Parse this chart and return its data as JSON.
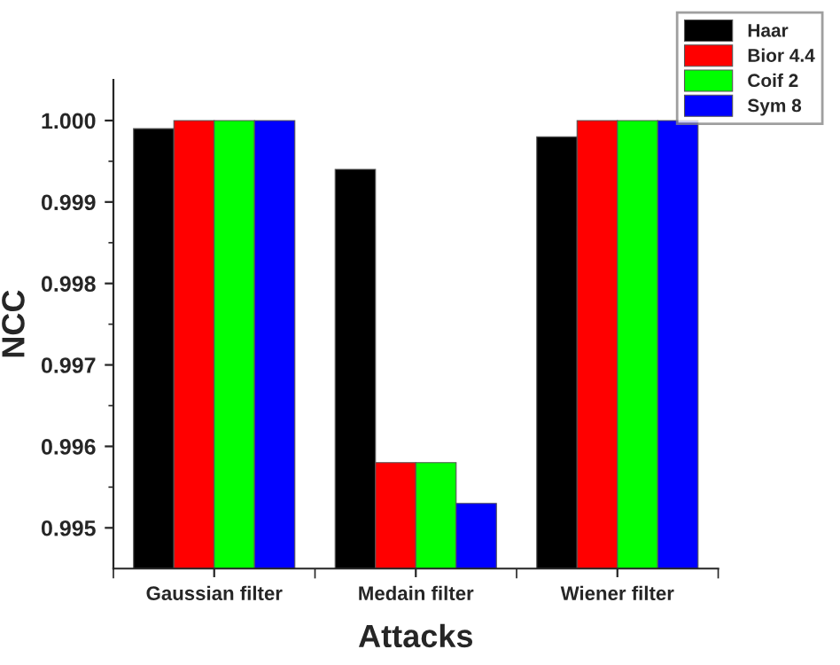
{
  "chart_data": {
    "type": "bar",
    "xlabel": "Attacks",
    "ylabel": "NCC",
    "categories": [
      "Gaussian filter",
      "Medain filter",
      "Wiener filter"
    ],
    "series": [
      {
        "name": "Haar",
        "color": "#000000",
        "values": [
          0.9999,
          0.9994,
          0.9998
        ]
      },
      {
        "name": "Bior 4.4",
        "color": "#ff0000",
        "values": [
          1.0,
          0.9958,
          1.0
        ]
      },
      {
        "name": "Coif 2",
        "color": "#00ff00",
        "values": [
          1.0,
          0.9958,
          1.0
        ]
      },
      {
        "name": "Sym 8",
        "color": "#0000ff",
        "values": [
          1.0,
          0.9953,
          1.0
        ]
      }
    ],
    "ylim": [
      0.9945,
      1.0005
    ],
    "yticks": [
      {
        "value": 0.995,
        "label": "0.995"
      },
      {
        "value": 0.996,
        "label": "0.996"
      },
      {
        "value": 0.997,
        "label": "0.997"
      },
      {
        "value": 0.998,
        "label": "0.998"
      },
      {
        "value": 0.999,
        "label": "0.999"
      },
      {
        "value": 1.0,
        "label": "1.000"
      }
    ],
    "grid": false,
    "legend": "top right"
  }
}
